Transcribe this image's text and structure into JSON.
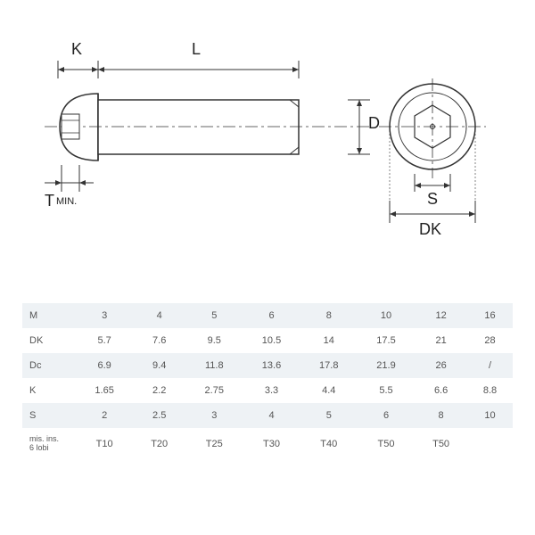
{
  "diagram": {
    "labels": {
      "K": "K",
      "L": "L",
      "D": "D",
      "Tmin": "T",
      "Tmin_sub": "MIN.",
      "S": "S",
      "DK": "DK"
    },
    "line_color": "#333333",
    "fill_color": "#ffffff",
    "font_size": 18
  },
  "table": {
    "background_alt": "#eef2f5",
    "text_color": "#555555",
    "columns": [
      "3",
      "4",
      "5",
      "6",
      "8",
      "10",
      "12",
      "16"
    ],
    "rows": [
      {
        "label": "M",
        "values": [
          "3",
          "4",
          "5",
          "6",
          "8",
          "10",
          "12",
          "16"
        ]
      },
      {
        "label": "DK",
        "values": [
          "5.7",
          "7.6",
          "9.5",
          "10.5",
          "14",
          "17.5",
          "21",
          "28"
        ]
      },
      {
        "label": "Dc",
        "values": [
          "6.9",
          "9.4",
          "11.8",
          "13.6",
          "17.8",
          "21.9",
          "26",
          "/"
        ]
      },
      {
        "label": "K",
        "values": [
          "1.65",
          "2.2",
          "2.75",
          "3.3",
          "4.4",
          "5.5",
          "6.6",
          "8.8"
        ]
      },
      {
        "label": "S",
        "values": [
          "2",
          "2.5",
          "3",
          "4",
          "5",
          "6",
          "8",
          "10"
        ]
      },
      {
        "label": "mis. ins. 6 lobi",
        "values": [
          "T10",
          "T20",
          "T25",
          "T30",
          "T40",
          "T50",
          "T50",
          ""
        ]
      }
    ]
  }
}
